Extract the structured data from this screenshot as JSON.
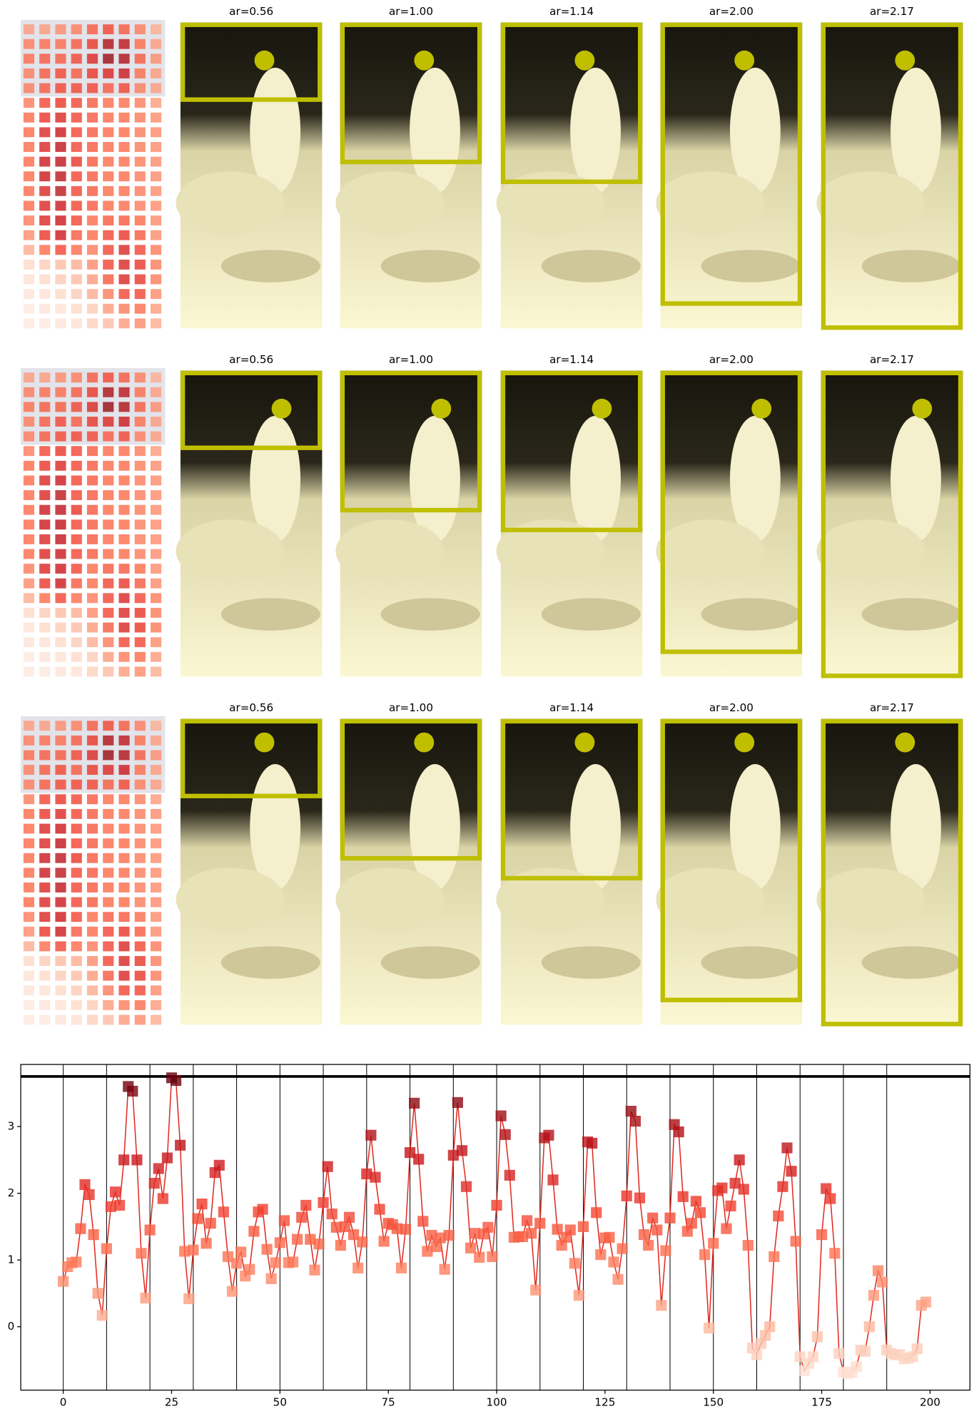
{
  "panels": [
    [
      {
        "value": 0.56,
        "label": "ar=0.56"
      },
      {
        "value": 1.0,
        "label": "ar=1.00"
      },
      {
        "value": 1.14,
        "label": "ar=1.14"
      },
      {
        "value": 2.0,
        "label": "ar=2.00"
      },
      {
        "value": 2.17,
        "label": "ar=2.17"
      }
    ],
    [
      {
        "value": 0.56,
        "label": "ar=0.56"
      },
      {
        "value": 1.0,
        "label": "ar=1.00"
      },
      {
        "value": 1.14,
        "label": "ar=1.14"
      },
      {
        "value": 2.0,
        "label": "ar=2.00"
      },
      {
        "value": 2.17,
        "label": "ar=2.17"
      }
    ],
    [
      {
        "value": 0.56,
        "label": "ar=0.56"
      },
      {
        "value": 1.0,
        "label": "ar=1.00"
      },
      {
        "value": 1.14,
        "label": "ar=1.14"
      },
      {
        "value": 2.0,
        "label": "ar=2.00"
      },
      {
        "value": 2.17,
        "label": "ar=2.17"
      }
    ]
  ],
  "heatmap": [
    [
      0.35,
      0.35,
      0.4,
      0.45,
      0.55,
      0.6,
      0.55,
      0.45,
      0.3
    ],
    [
      0.45,
      0.5,
      0.5,
      0.55,
      0.65,
      0.85,
      0.8,
      0.5,
      0.35
    ],
    [
      0.5,
      0.55,
      0.55,
      0.6,
      0.7,
      0.9,
      0.85,
      0.55,
      0.4
    ],
    [
      0.45,
      0.55,
      0.6,
      0.55,
      0.65,
      0.7,
      0.75,
      0.5,
      0.35
    ],
    [
      0.45,
      0.55,
      0.6,
      0.6,
      0.6,
      0.55,
      0.6,
      0.45,
      0.35
    ],
    [
      0.45,
      0.6,
      0.65,
      0.6,
      0.55,
      0.5,
      0.5,
      0.45,
      0.35
    ],
    [
      0.5,
      0.65,
      0.7,
      0.6,
      0.55,
      0.5,
      0.5,
      0.45,
      0.4
    ],
    [
      0.5,
      0.7,
      0.75,
      0.6,
      0.55,
      0.5,
      0.5,
      0.45,
      0.4
    ],
    [
      0.5,
      0.7,
      0.8,
      0.6,
      0.55,
      0.5,
      0.5,
      0.45,
      0.4
    ],
    [
      0.5,
      0.75,
      0.8,
      0.65,
      0.55,
      0.5,
      0.5,
      0.45,
      0.4
    ],
    [
      0.5,
      0.75,
      0.8,
      0.6,
      0.55,
      0.5,
      0.5,
      0.45,
      0.4
    ],
    [
      0.5,
      0.7,
      0.8,
      0.6,
      0.55,
      0.5,
      0.5,
      0.45,
      0.4
    ],
    [
      0.5,
      0.7,
      0.75,
      0.6,
      0.55,
      0.5,
      0.5,
      0.45,
      0.4
    ],
    [
      0.45,
      0.7,
      0.75,
      0.6,
      0.5,
      0.55,
      0.55,
      0.5,
      0.4
    ],
    [
      0.4,
      0.65,
      0.75,
      0.55,
      0.5,
      0.6,
      0.65,
      0.55,
      0.4
    ],
    [
      0.3,
      0.5,
      0.6,
      0.5,
      0.45,
      0.6,
      0.7,
      0.6,
      0.45
    ],
    [
      0.15,
      0.2,
      0.25,
      0.3,
      0.4,
      0.6,
      0.7,
      0.65,
      0.45
    ],
    [
      0.12,
      0.15,
      0.2,
      0.25,
      0.35,
      0.55,
      0.7,
      0.65,
      0.45
    ],
    [
      0.1,
      0.12,
      0.15,
      0.2,
      0.3,
      0.45,
      0.6,
      0.6,
      0.4
    ],
    [
      0.08,
      0.1,
      0.12,
      0.15,
      0.2,
      0.35,
      0.45,
      0.5,
      0.35
    ],
    [
      0.08,
      0.08,
      0.1,
      0.12,
      0.18,
      0.25,
      0.35,
      0.4,
      0.3
    ]
  ],
  "chart_data": {
    "type": "line",
    "color": "#e0281e",
    "colormap": "Reds",
    "xlim": [
      -9.8,
      209.2
    ],
    "ylim": [
      -0.95,
      3.93
    ],
    "xticks": [
      0,
      25,
      50,
      75,
      100,
      125,
      150,
      175,
      200
    ],
    "yticks": [
      0,
      1,
      2,
      3
    ],
    "hline": 3.75,
    "vlines": [
      0,
      10,
      20,
      30,
      40,
      50,
      60,
      70,
      80,
      90,
      100,
      110,
      120,
      130,
      140,
      150,
      160,
      170,
      180,
      190
    ],
    "values": [
      0.68,
      0.9,
      0.96,
      0.97,
      1.47,
      2.13,
      1.98,
      1.38,
      0.5,
      0.17,
      1.17,
      1.8,
      2.02,
      1.82,
      2.5,
      3.6,
      3.53,
      2.5,
      1.1,
      0.43,
      1.45,
      2.15,
      2.37,
      1.92,
      2.53,
      3.73,
      3.69,
      2.72,
      1.13,
      0.42,
      1.15,
      1.62,
      1.84,
      1.25,
      1.55,
      2.31,
      2.42,
      1.72,
      1.05,
      0.53,
      0.95,
      1.12,
      0.76,
      0.86,
      1.43,
      1.72,
      1.76,
      1.16,
      0.72,
      0.96,
      1.26,
      1.59,
      0.96,
      0.97,
      1.31,
      1.64,
      1.82,
      1.31,
      0.85,
      1.24,
      1.86,
      2.4,
      1.69,
      1.49,
      1.22,
      1.5,
      1.64,
      1.38,
      0.88,
      1.27,
      2.29,
      2.87,
      2.24,
      1.76,
      1.28,
      1.55,
      1.53,
      1.47,
      0.88,
      1.46,
      2.61,
      3.35,
      2.51,
      1.58,
      1.13,
      1.37,
      1.2,
      1.33,
      0.86,
      1.37,
      2.57,
      3.36,
      2.64,
      2.1,
      1.18,
      1.4,
      1.04,
      1.39,
      1.49,
      1.05,
      1.82,
      3.16,
      2.88,
      2.27,
      1.34,
      1.35,
      1.35,
      1.59,
      1.4,
      0.55,
      1.55,
      2.83,
      2.87,
      2.2,
      1.46,
      1.22,
      1.34,
      1.45,
      0.95,
      0.47,
      1.5,
      2.77,
      2.75,
      1.71,
      1.08,
      1.33,
      1.34,
      0.97,
      0.71,
      1.17,
      1.96,
      3.23,
      3.08,
      1.93,
      1.38,
      1.22,
      1.63,
      1.45,
      0.32,
      1.14,
      1.63,
      3.03,
      2.92,
      1.95,
      1.43,
      1.55,
      1.88,
      1.71,
      1.08,
      -0.02,
      1.25,
      2.04,
      2.08,
      1.47,
      1.81,
      2.15,
      2.5,
      2.06,
      1.22,
      -0.32,
      -0.42,
      -0.25,
      -0.13,
      0.0,
      1.05,
      1.66,
      2.1,
      2.68,
      2.33,
      1.28,
      -0.45,
      -0.66,
      -0.55,
      -0.45,
      -0.15,
      1.38,
      2.07,
      1.92,
      1.1,
      -0.4,
      -0.68,
      -0.7,
      -0.68,
      -0.6,
      -0.35,
      -0.37,
      0.0,
      0.47,
      0.84,
      0.67,
      -0.35,
      -0.4,
      -0.42,
      -0.42,
      -0.48,
      -0.47,
      -0.45,
      -0.33,
      0.32,
      0.37
    ]
  }
}
